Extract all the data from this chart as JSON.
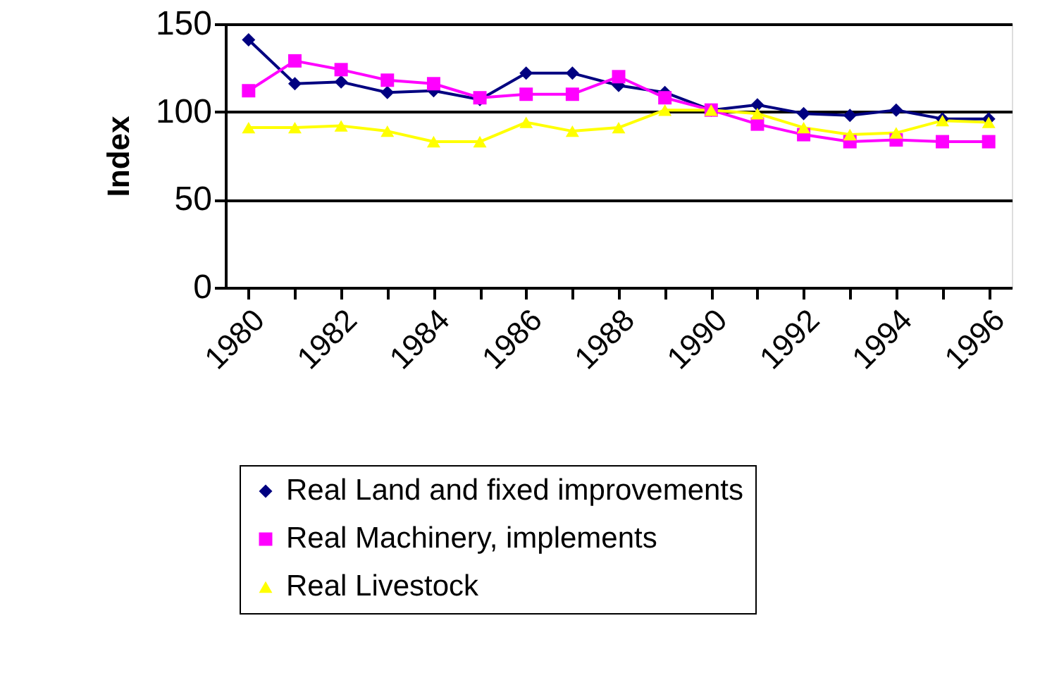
{
  "chart_data": {
    "type": "line",
    "ylabel": "Index",
    "categories": [
      "1980",
      null,
      "1982",
      null,
      "1984",
      null,
      "1986",
      null,
      "1988",
      null,
      "1990",
      null,
      "1992",
      null,
      "1994",
      null,
      "1996"
    ],
    "series": [
      {
        "name": "Real Land and fixed improvements",
        "color": "#000080",
        "marker": "diamond",
        "values": [
          141,
          116,
          117,
          111,
          112,
          107,
          122,
          122,
          115,
          111,
          101,
          104,
          99,
          98,
          101,
          96,
          96
        ]
      },
      {
        "name": "Real Machinery, implements",
        "color": "#ff00ff",
        "marker": "square",
        "values": [
          112,
          129,
          124,
          118,
          116,
          108,
          110,
          110,
          120,
          108,
          101,
          93,
          87,
          83,
          84,
          83,
          83
        ]
      },
      {
        "name": "Real Livestock",
        "color": "#ffff00",
        "marker": "triangle",
        "values": [
          91,
          91,
          92,
          89,
          83,
          83,
          94,
          89,
          91,
          101,
          101,
          99,
          91,
          87,
          88,
          95,
          94
        ]
      }
    ],
    "ylim": [
      0,
      150
    ],
    "yticks": [
      0,
      50,
      100,
      150
    ],
    "grid": "y",
    "legend": "bottom",
    "line_style": "solid"
  }
}
